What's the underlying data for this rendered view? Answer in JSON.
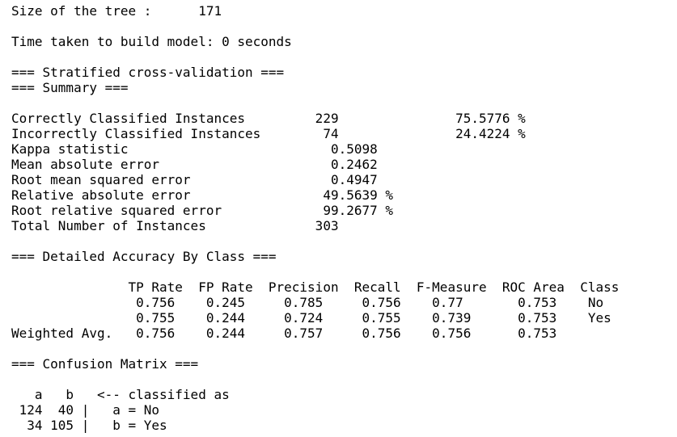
{
  "output": {
    "lines": [
      "Size of the tree : \t171",
      "",
      "Time taken to build model: 0 seconds",
      "",
      "=== Stratified cross-validation ===",
      "=== Summary ===",
      "",
      "Correctly Classified Instances         229               75.5776 %",
      "Incorrectly Classified Instances        74               24.4224 %",
      "Kappa statistic                          0.5098",
      "Mean absolute error                      0.2462",
      "Root mean squared error                  0.4947",
      "Relative absolute error                 49.5639 %",
      "Root relative squared error             99.2677 %",
      "Total Number of Instances              303",
      "",
      "=== Detailed Accuracy By Class ===",
      "",
      "               TP Rate  FP Rate  Precision  Recall  F-Measure  ROC Area  Class",
      "                0.756    0.245     0.785     0.756    0.77       0.753    No",
      "                0.755    0.244     0.724     0.755    0.739      0.753    Yes",
      "Weighted Avg.   0.756    0.244     0.757     0.756    0.756      0.753",
      "",
      "=== Confusion Matrix ===",
      "",
      "   a   b   <-- classified as",
      " 124  40 |   a = No",
      "  34 105 |   b = Yes"
    ]
  }
}
